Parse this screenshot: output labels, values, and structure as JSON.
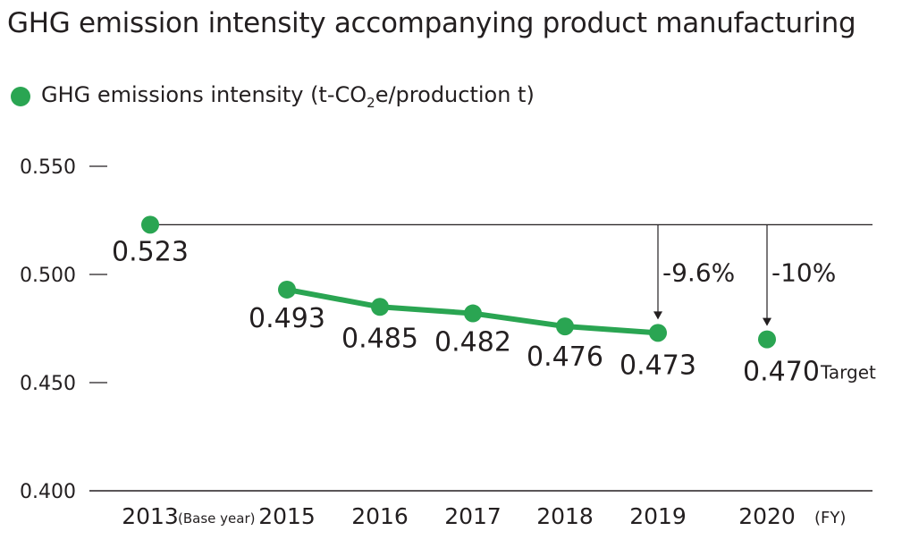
{
  "title": "GHG emission intensity accompanying product manufacturing",
  "legend": {
    "label_main": "GHG emissions intensity (t-CO",
    "label_sub": "2",
    "label_tail": "e/production t)"
  },
  "colors": {
    "series": "#2aa552",
    "text": "#231f20",
    "axis": "#231f20"
  },
  "chart_data": {
    "type": "line",
    "title": "GHG emission intensity accompanying product manufacturing",
    "xlabel": "(FY)",
    "ylabel": "",
    "ylim": [
      0.4,
      0.55
    ],
    "yticks": [
      "0.550",
      "0.500",
      "0.450",
      "0.400"
    ],
    "ytick_values": [
      0.55,
      0.5,
      0.45,
      0.4
    ],
    "categories": [
      "2013",
      "2015",
      "2016",
      "2017",
      "2018",
      "2019",
      "2020"
    ],
    "base_year_note": "(Base year)",
    "x_unit": "(FY)",
    "series": [
      {
        "name": "GHG emissions intensity (t-CO2e/production t)",
        "values": [
          0.523,
          0.493,
          0.485,
          0.482,
          0.476,
          0.473,
          0.47
        ],
        "value_labels": [
          "0.523",
          "0.493",
          "0.485",
          "0.482",
          "0.476",
          "0.473",
          "0.470"
        ],
        "connected": [
          false,
          true,
          true,
          true,
          true,
          true,
          false
        ]
      }
    ],
    "target_label": "Target",
    "reference_line": {
      "value": 0.523
    },
    "annotations": [
      {
        "category": "2019",
        "text": "-9.6%"
      },
      {
        "category": "2020",
        "text": "-10%"
      }
    ]
  }
}
